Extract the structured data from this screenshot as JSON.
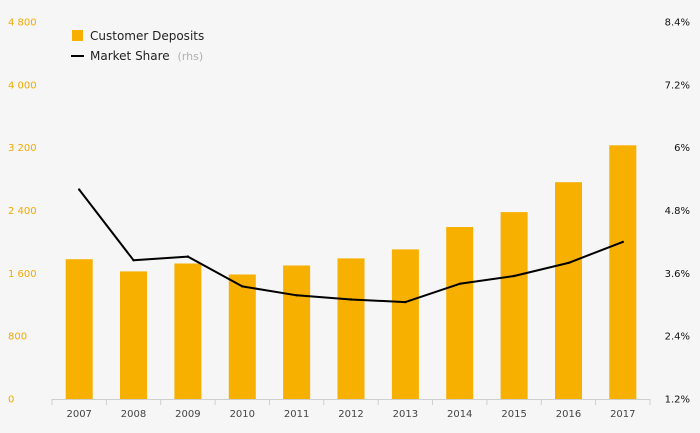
{
  "chart_data": {
    "type": "bar",
    "categories": [
      "2007",
      "2008",
      "2009",
      "2010",
      "2011",
      "2012",
      "2013",
      "2014",
      "2015",
      "2016",
      "2017"
    ],
    "series": [
      {
        "name": "Customer Deposits",
        "kind": "bar",
        "axis": "left",
        "color": "#f7b000",
        "values": [
          1780,
          1625,
          1725,
          1585,
          1700,
          1790,
          1905,
          2190,
          2380,
          2760,
          3230
        ]
      },
      {
        "name": "Market Share",
        "legend_suffix": "(rhs)",
        "kind": "line",
        "axis": "right",
        "color": "#000000",
        "values": [
          5.2,
          3.85,
          3.92,
          3.35,
          3.18,
          3.1,
          3.05,
          3.4,
          3.55,
          3.8,
          4.2
        ]
      }
    ],
    "y_left": {
      "ticks": [
        0,
        800,
        1600,
        2400,
        3200,
        4000,
        4800
      ],
      "tick_labels": [
        "0",
        "800",
        "1 600",
        "2 400",
        "3 200",
        "4 000",
        "4 800"
      ],
      "ylim": [
        0,
        4800
      ],
      "color": "#f2a900"
    },
    "y_right": {
      "ticks": [
        1.2,
        2.4,
        3.6,
        4.8,
        6.0,
        7.2,
        8.4
      ],
      "tick_labels": [
        "1.2%",
        "2.4%",
        "3.6%",
        "4.8%",
        "6%",
        "7.2%",
        "8.4%"
      ],
      "ylim": [
        1.2,
        8.4
      ]
    },
    "grid": false,
    "legend_position": "top-left"
  }
}
